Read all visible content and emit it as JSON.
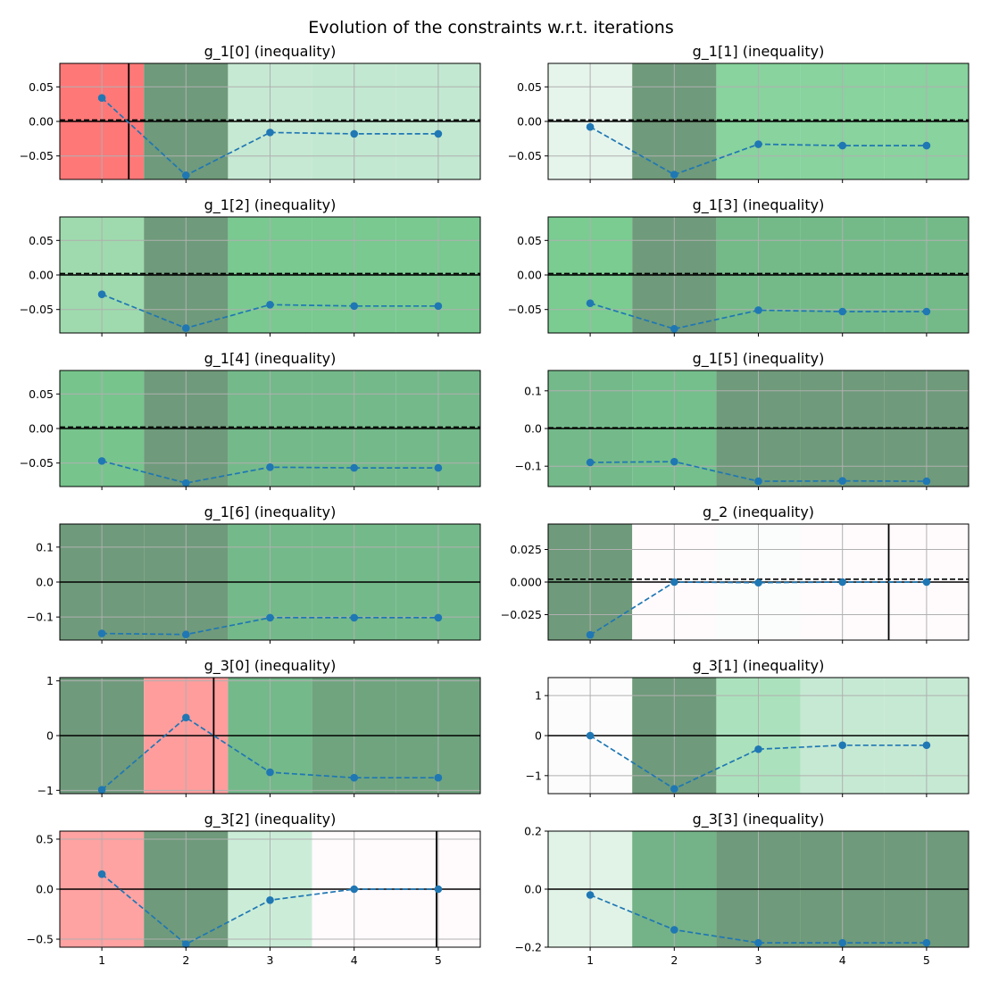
{
  "figure_title": "Evolution of the constraints w.r.t. iterations",
  "colors": {
    "line": "#1f77b4",
    "grid": "#b0b0b0",
    "zero_line": "#000000"
  },
  "chart_data": [
    {
      "type": "line",
      "title": "g_1[0] (inequality)",
      "x": [
        1,
        2,
        3,
        4,
        5
      ],
      "y": [
        0.034,
        -0.078,
        -0.016,
        -0.018,
        -0.018
      ],
      "ylim": [
        -0.084,
        0.084
      ],
      "yticks": [
        0.05,
        0.0,
        -0.05
      ],
      "ytick_labels": [
        "0.05",
        "0.00",
        "−0.05"
      ],
      "dashed_threshold": 0.002,
      "crossing_x": 1.32,
      "bands": [
        "#ff7878",
        "#6f9a7b",
        "#c6e9d3",
        "#c2e8d1",
        "#c2e8d1"
      ]
    },
    {
      "type": "line",
      "title": "g_1[1] (inequality)",
      "x": [
        1,
        2,
        3,
        4,
        5
      ],
      "y": [
        -0.008,
        -0.077,
        -0.033,
        -0.035,
        -0.035
      ],
      "ylim": [
        -0.084,
        0.084
      ],
      "yticks": [
        0.05,
        0.0,
        -0.05
      ],
      "ytick_labels": [
        "0.05",
        "0.00",
        "−0.05"
      ],
      "dashed_threshold": 0.002,
      "bands": [
        "#e6f5ec",
        "#6f9a7b",
        "#88d39e",
        "#88d39e",
        "#88d39e"
      ]
    },
    {
      "type": "line",
      "title": "g_1[2] (inequality)",
      "x": [
        1,
        2,
        3,
        4,
        5
      ],
      "y": [
        -0.028,
        -0.077,
        -0.043,
        -0.045,
        -0.045
      ],
      "ylim": [
        -0.084,
        0.084
      ],
      "yticks": [
        0.05,
        0.0,
        -0.05
      ],
      "ytick_labels": [
        "0.05",
        "0.00",
        "−0.05"
      ],
      "dashed_threshold": 0.002,
      "bands": [
        "#9edaad",
        "#6f9a7b",
        "#79c990",
        "#79c990",
        "#79c990"
      ]
    },
    {
      "type": "line",
      "title": "g_1[3] (inequality)",
      "x": [
        1,
        2,
        3,
        4,
        5
      ],
      "y": [
        -0.041,
        -0.078,
        -0.051,
        -0.053,
        -0.053
      ],
      "ylim": [
        -0.084,
        0.084
      ],
      "yticks": [
        0.05,
        0.0,
        -0.05
      ],
      "ytick_labels": [
        "0.05",
        "0.00",
        "−0.05"
      ],
      "dashed_threshold": 0.002,
      "bands": [
        "#7acc91",
        "#6f9a7b",
        "#74ba89",
        "#74ba89",
        "#74ba89"
      ]
    },
    {
      "type": "line",
      "title": "g_1[4] (inequality)",
      "x": [
        1,
        2,
        3,
        4,
        5
      ],
      "y": [
        -0.047,
        -0.079,
        -0.056,
        -0.057,
        -0.057
      ],
      "ylim": [
        -0.084,
        0.084
      ],
      "yticks": [
        0.05,
        0.0,
        -0.05
      ],
      "ytick_labels": [
        "0.05",
        "0.00",
        "−0.05"
      ],
      "dashed_threshold": 0.002,
      "bands": [
        "#77c48d",
        "#6f9a7b",
        "#74b98a",
        "#74b98a",
        "#74b98a"
      ]
    },
    {
      "type": "line",
      "title": "g_1[5] (inequality)",
      "x": [
        1,
        2,
        3,
        4,
        5
      ],
      "y": [
        -0.09,
        -0.088,
        -0.14,
        -0.139,
        -0.14
      ],
      "ylim": [
        -0.154,
        0.154
      ],
      "yticks": [
        0.1,
        0.0,
        -0.1
      ],
      "ytick_labels": [
        "0.1",
        "0.0",
        "−0.1"
      ],
      "dashed_threshold": 0.002,
      "bands": [
        "#74b98a",
        "#75bf8c",
        "#6f9a7b",
        "#6f9a7b",
        "#6f9a7b"
      ]
    },
    {
      "type": "line",
      "title": "g_1[6] (inequality)",
      "x": [
        1,
        2,
        3,
        4,
        5
      ],
      "y": [
        -0.147,
        -0.15,
        -0.102,
        -0.102,
        -0.102
      ],
      "ylim": [
        -0.166,
        0.166
      ],
      "yticks": [
        0.1,
        0.0,
        -0.1
      ],
      "ytick_labels": [
        "0.1",
        "0.0",
        "−0.1"
      ],
      "bands": [
        "#6f9a7b",
        "#6f9a7b",
        "#74b98a",
        "#74b98a",
        "#74b98a"
      ]
    },
    {
      "type": "line",
      "title": "g_2 (inequality)",
      "x": [
        1,
        2,
        3,
        4,
        5
      ],
      "y": [
        -0.0405,
        0.0,
        -0.0005,
        0.0,
        0.0
      ],
      "ylim": [
        -0.0445,
        0.0445
      ],
      "yticks": [
        0.025,
        0.0,
        -0.025
      ],
      "ytick_labels": [
        "0.025",
        "0.000",
        "−0.025"
      ],
      "dashed_threshold": 0.0022,
      "crossing_x": 4.55,
      "bands": [
        "#6f9a7b",
        "#fffbfd",
        "#fbfdfc",
        "#fffbfd",
        "#fffbfd"
      ]
    },
    {
      "type": "line",
      "title": "g_3[0] (inequality)",
      "x": [
        1,
        2,
        3,
        4,
        5
      ],
      "y": [
        -0.99,
        0.33,
        -0.67,
        -0.77,
        -0.77
      ],
      "ylim": [
        -1.06,
        1.06
      ],
      "yticks": [
        1,
        0,
        -1
      ],
      "ytick_labels": [
        "1",
        "0",
        "−1"
      ],
      "crossing_x": 2.33,
      "bands": [
        "#6f9a7b",
        "#ff9d9d",
        "#74b98a",
        "#6fa47f",
        "#6fa47f"
      ]
    },
    {
      "type": "line",
      "title": "g_3[1] (inequality)",
      "x": [
        1,
        2,
        3,
        4,
        5
      ],
      "y": [
        0.0,
        -1.33,
        -0.34,
        -0.24,
        -0.24
      ],
      "ylim": [
        -1.45,
        1.45
      ],
      "yticks": [
        1,
        0,
        -1
      ],
      "ytick_labels": [
        "1",
        "0",
        "−1"
      ],
      "bands": [
        "#fcfcfc",
        "#6f9a7b",
        "#abe2bd",
        "#c6e9d3",
        "#c6e9d3"
      ]
    },
    {
      "type": "line",
      "title": "g_3[2] (inequality)",
      "x": [
        1,
        2,
        3,
        4,
        5
      ],
      "y": [
        0.15,
        -0.55,
        -0.11,
        0.0,
        0.0
      ],
      "ylim": [
        -0.58,
        0.58
      ],
      "yticks": [
        0.5,
        0.0,
        -0.5
      ],
      "ytick_labels": [
        "0.5",
        "0.0",
        "−0.5"
      ],
      "crossing_x": 4.98,
      "bands": [
        "#ffa2a2",
        "#6f9a7b",
        "#cbedd8",
        "#fffbfd",
        "#fffbfd"
      ]
    },
    {
      "type": "line",
      "title": "g_3[3] (inequality)",
      "x": [
        1,
        2,
        3,
        4,
        5
      ],
      "y": [
        -0.02,
        -0.14,
        -0.185,
        -0.185,
        -0.185
      ],
      "ylim": [
        -0.2,
        0.2
      ],
      "yticks": [
        0.2,
        0.0,
        -0.2
      ],
      "ytick_labels": [
        "0.2",
        "0.0",
        "−0.2"
      ],
      "bands": [
        "#e1f3e7",
        "#74b288",
        "#6f9a7b",
        "#6f9a7b",
        "#6f9a7b"
      ]
    }
  ],
  "xticks": [
    1,
    2,
    3,
    4,
    5
  ],
  "xtick_labels": [
    "1",
    "2",
    "3",
    "4",
    "5"
  ],
  "xlim": [
    0.5,
    5.5
  ]
}
